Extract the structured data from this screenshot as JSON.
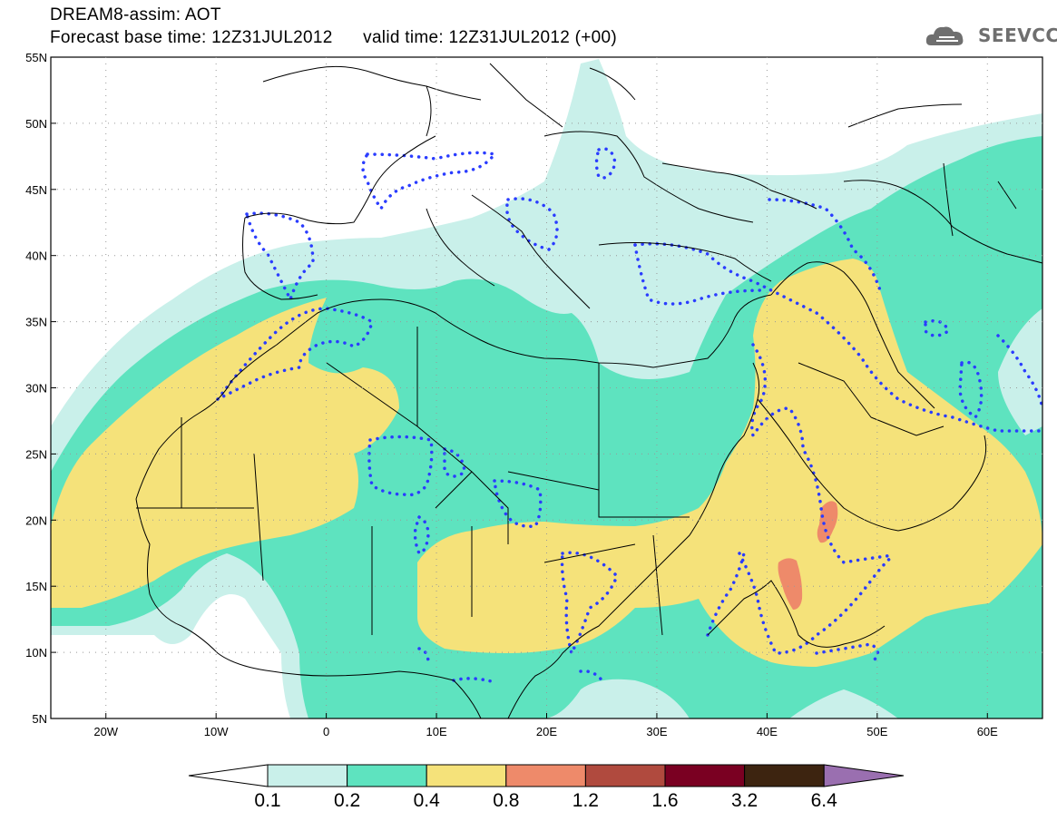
{
  "header": {
    "title_line1": "DREAM8-assim: AOT",
    "title_line2_base": "Forecast base time: 12Z31JUL2012",
    "title_line2_valid": "valid time: 12Z31JUL2012 (+00)"
  },
  "logo": {
    "text": "SEEVCCC",
    "icon": "cloud-icon"
  },
  "map": {
    "lat_labels": [
      "55N",
      "50N",
      "45N",
      "40N",
      "35N",
      "30N",
      "25N",
      "20N",
      "15N",
      "10N",
      "5N"
    ],
    "lon_labels": [
      "20W",
      "10W",
      "0",
      "10E",
      "20E",
      "30E",
      "40E",
      "50E",
      "60E"
    ],
    "colors": {
      "c01": "#c9f0ea",
      "c02": "#5ee3bf",
      "c04": "#f5e27a",
      "c08": "#ee8a6a",
      "c12": "#b04a3e",
      "c16": "#7a0022",
      "c32": "#3d2410",
      "c64": "#9a6fb0",
      "contour": "#2a3cff",
      "border": "#000000"
    }
  },
  "colorbar": {
    "labels": [
      "0.1",
      "0.2",
      "0.4",
      "0.8",
      "1.2",
      "1.6",
      "3.2",
      "6.4"
    ],
    "colors": [
      "#c9f0ea",
      "#5ee3bf",
      "#f5e27a",
      "#ee8a6a",
      "#b04a3e",
      "#7a0022",
      "#3d2410"
    ],
    "extend_high_color": "#9a6fb0",
    "extend_low_color": "#ffffff"
  }
}
